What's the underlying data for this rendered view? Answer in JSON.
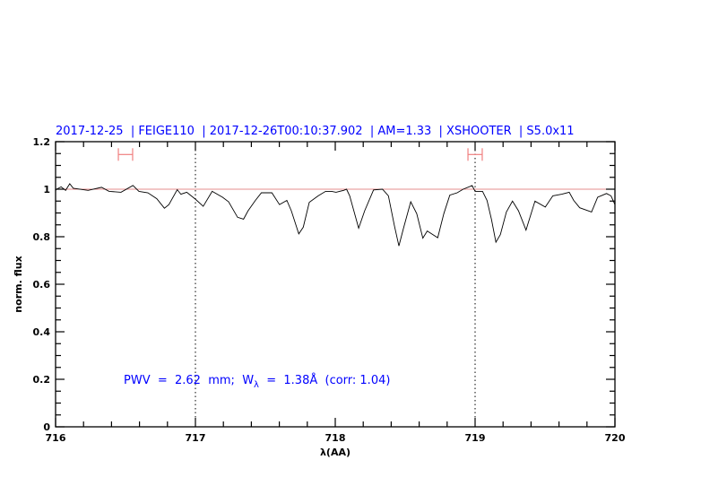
{
  "chart_data": {
    "type": "line",
    "title": "2017-12-25  | FEIGE110  | 2017-12-26T00:10:37.902  | AM=1.33  | XSHOOTER  | S5.0x11",
    "xlabel": "λ(AA)",
    "ylabel": "norm. flux",
    "xlim": [
      716,
      720
    ],
    "ylim": [
      0,
      1.2
    ],
    "xticks": [
      716,
      717,
      718,
      719,
      720
    ],
    "xtick_labels": [
      "716",
      "717",
      "718",
      "719",
      "720"
    ],
    "yticks": [
      0,
      0.2,
      0.4,
      0.6,
      0.8,
      1,
      1.2
    ],
    "ytick_labels": [
      "0",
      "0.2",
      "0.4",
      "0.6",
      "0.8",
      "1",
      "1.2"
    ],
    "x_minor_step": 0.2,
    "y_minor_step": 0.05,
    "grid": false,
    "reference_line": {
      "y": 1,
      "color": "#e07070"
    },
    "vertical_markers": [
      717,
      719
    ],
    "error_bars": [
      {
        "xmin": 716.449,
        "xmax": 716.551,
        "y": 1.146
      },
      {
        "xmin": 718.949,
        "xmax": 719.051,
        "y": 1.146
      }
    ],
    "annotation": {
      "prefix": "PWV  =  2.62  mm;  W",
      "sub": "λ",
      "suffix": "  =  1.38Å  (corr: 1.04)"
    },
    "colors": {
      "spectrum": "#000000",
      "text": "#0000ff",
      "error_bar": "#f08080"
    },
    "series": [
      {
        "x": [
          716.0,
          716.008,
          716.04,
          716.072,
          716.101,
          716.126,
          716.233,
          716.329,
          716.383,
          716.468,
          716.553,
          716.596,
          716.66,
          716.724,
          716.778,
          716.81,
          716.87,
          716.896,
          716.938,
          717.002,
          717.056,
          717.12,
          717.194,
          717.237,
          717.301,
          717.344,
          717.376,
          717.429,
          717.472,
          717.547,
          717.601,
          717.654,
          717.686,
          717.739,
          717.771,
          717.814,
          717.878,
          717.931,
          717.974,
          718.006,
          718.06,
          718.081,
          718.103,
          718.167,
          718.21,
          718.274,
          718.338,
          718.38,
          718.423,
          718.455,
          718.487,
          718.54,
          718.583,
          718.626,
          718.658,
          718.733,
          718.776,
          718.819,
          718.872,
          718.915,
          718.979,
          719.0,
          719.053,
          719.085,
          719.117,
          719.149,
          719.181,
          719.224,
          719.267,
          719.31,
          719.364,
          719.428,
          719.502,
          719.556,
          719.62,
          719.673,
          719.705,
          719.748,
          719.833,
          719.876,
          719.94,
          719.972,
          720.0
        ],
        "y": [
          0.995,
          1.0,
          1.01,
          0.995,
          1.023,
          1.004,
          0.995,
          1.008,
          0.991,
          0.987,
          1.016,
          0.991,
          0.985,
          0.96,
          0.92,
          0.935,
          0.998,
          0.979,
          0.987,
          0.957,
          0.928,
          0.991,
          0.966,
          0.947,
          0.882,
          0.874,
          0.909,
          0.953,
          0.985,
          0.985,
          0.935,
          0.953,
          0.909,
          0.812,
          0.84,
          0.945,
          0.972,
          0.991,
          0.991,
          0.987,
          0.995,
          1.0,
          0.972,
          0.836,
          0.909,
          0.997,
          1.0,
          0.972,
          0.846,
          0.761,
          0.834,
          0.947,
          0.897,
          0.794,
          0.824,
          0.796,
          0.897,
          0.975,
          0.985,
          1.0,
          1.015,
          0.991,
          0.991,
          0.953,
          0.872,
          0.777,
          0.809,
          0.904,
          0.95,
          0.909,
          0.828,
          0.95,
          0.925,
          0.972,
          0.979,
          0.987,
          0.953,
          0.922,
          0.904,
          0.966,
          0.982,
          0.972,
          0.935
        ]
      }
    ]
  }
}
